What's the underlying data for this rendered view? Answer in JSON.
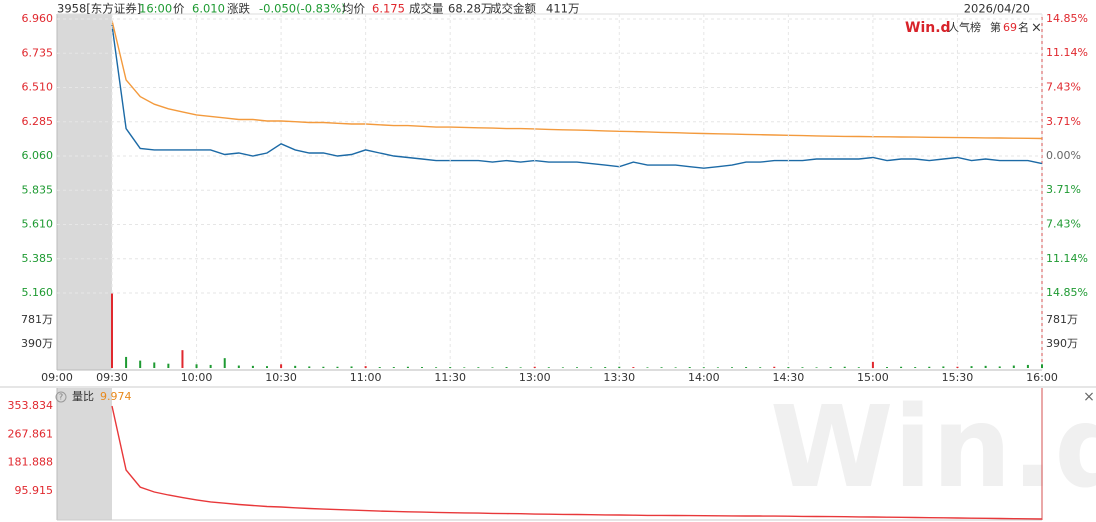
{
  "header": {
    "security": "3958[东方证券]",
    "time": "16:00",
    "price_label": "价",
    "price": "6.010",
    "change_label": "涨跌",
    "change": "-0.050(-0.83%)",
    "avg_label": "均价",
    "avg": "6.175",
    "volume_label": "成交量",
    "volume": "68.28万",
    "amount_label": "成交金额",
    "amount": "411万",
    "date": "2026/04/20"
  },
  "badge": {
    "logo": "Win.d",
    "rank_label": "人气榜",
    "rank_prefix": "第",
    "rank": 69,
    "rank_suffix": "名",
    "close": "×"
  },
  "watermark": "Win.d",
  "chart_data": [
    {
      "type": "line",
      "x": [
        0,
        1,
        2,
        3,
        4,
        5,
        6,
        7,
        8,
        9,
        10,
        11,
        12,
        13,
        14,
        15,
        16,
        17,
        18,
        19,
        20,
        21,
        22,
        23,
        24,
        25,
        26,
        27,
        28,
        29,
        30,
        31,
        32,
        33,
        34,
        35,
        36,
        37,
        38,
        39,
        40,
        41,
        42,
        43,
        44,
        45,
        46,
        47,
        48,
        49,
        50,
        51,
        52,
        53,
        54,
        55,
        56,
        57,
        58,
        59,
        60,
        61,
        62,
        63,
        64,
        65,
        66
      ],
      "xlim": [
        0,
        66
      ],
      "ylim": [
        5.16,
        6.96
      ],
      "yticks": [
        {
          "value": 6.96,
          "label": "6.960"
        },
        6.735,
        {
          "value": 6.51,
          "label": "6.510"
        },
        6.285,
        {
          "value": 6.06,
          "label": "6.060"
        },
        5.835,
        {
          "value": 5.61,
          "label": "5.610"
        },
        5.385,
        {
          "value": 5.16,
          "label": "5.160"
        }
      ],
      "y2lim": [
        -14.85,
        14.85
      ],
      "y2ticks": [
        {
          "value": 14.85,
          "label": "14.85%"
        },
        {
          "value": 11.14,
          "label": "11.14%"
        },
        {
          "value": 7.43,
          "label": "7.43%"
        },
        {
          "value": 3.71,
          "label": "3.71%"
        },
        {
          "value": 0,
          "label": "0.00%"
        },
        {
          "value": -3.71,
          "label": "3.71%"
        },
        {
          "value": -7.43,
          "label": "7.43%"
        },
        {
          "value": -11.14,
          "label": "11.14%"
        },
        {
          "value": -14.85,
          "label": "14.85%"
        }
      ],
      "grid": true,
      "series": [
        {
          "color": "#1c6aa6",
          "values": [
            6.92,
            6.24,
            6.11,
            6.1,
            6.1,
            6.1,
            6.1,
            6.1,
            6.07,
            6.08,
            6.06,
            6.08,
            6.14,
            6.1,
            6.08,
            6.08,
            6.06,
            6.07,
            6.1,
            6.08,
            6.06,
            6.05,
            6.04,
            6.03,
            6.03,
            6.03,
            6.03,
            6.02,
            6.03,
            6.02,
            6.03,
            6.02,
            6.02,
            6.02,
            6.01,
            6.0,
            5.99,
            6.02,
            6.0,
            6.0,
            6.0,
            5.99,
            5.98,
            5.99,
            6.0,
            6.02,
            6.02,
            6.03,
            6.03,
            6.03,
            6.04,
            6.04,
            6.04,
            6.04,
            6.05,
            6.03,
            6.04,
            6.04,
            6.03,
            6.04,
            6.05,
            6.03,
            6.04,
            6.03,
            6.03,
            6.03,
            6.01
          ]
        },
        {
          "color": "#f39a3d",
          "values": [
            6.95,
            6.56,
            6.45,
            6.4,
            6.37,
            6.35,
            6.33,
            6.32,
            6.31,
            6.3,
            6.3,
            6.29,
            6.29,
            6.285,
            6.28,
            6.28,
            6.275,
            6.27,
            6.27,
            6.265,
            6.26,
            6.26,
            6.255,
            6.25,
            6.25,
            6.248,
            6.245,
            6.243,
            6.24,
            6.24,
            6.238,
            6.235,
            6.232,
            6.23,
            6.228,
            6.225,
            6.222,
            6.22,
            6.218,
            6.215,
            6.213,
            6.21,
            6.208,
            6.206,
            6.204,
            6.202,
            6.2,
            6.198,
            6.196,
            6.194,
            6.192,
            6.19,
            6.189,
            6.188,
            6.187,
            6.186,
            6.185,
            6.184,
            6.183,
            6.182,
            6.181,
            6.18,
            6.179,
            6.178,
            6.177,
            6.176,
            6.175
          ]
        }
      ]
    },
    {
      "type": "bar",
      "x": [
        0,
        1,
        2,
        3,
        4,
        5,
        6,
        7,
        8,
        9,
        10,
        11,
        12,
        13,
        14,
        15,
        16,
        17,
        18,
        19,
        20,
        21,
        22,
        23,
        24,
        25,
        26,
        27,
        28,
        29,
        30,
        31,
        32,
        33,
        34,
        35,
        36,
        37,
        38,
        39,
        40,
        41,
        42,
        43,
        44,
        45,
        46,
        47,
        48,
        49,
        50,
        51,
        52,
        53,
        54,
        55,
        56,
        57,
        58,
        59,
        60,
        61,
        62,
        63,
        64,
        65,
        66
      ],
      "xlim": [
        0,
        66
      ],
      "xticks": [
        {
          "value": 0,
          "label": "09:30"
        },
        {
          "value": 6,
          "label": "10:00"
        },
        {
          "value": 12,
          "label": "10:30"
        },
        {
          "value": 18,
          "label": "11:00"
        },
        {
          "value": 24,
          "label": "11:30"
        },
        {
          "value": 30,
          "label": "13:00"
        },
        {
          "value": 36,
          "label": "13:30"
        },
        {
          "value": 42,
          "label": "14:00"
        },
        {
          "value": 48,
          "label": "14:30"
        },
        {
          "value": 54,
          "label": "15:00"
        },
        {
          "value": 60,
          "label": "15:30"
        },
        {
          "value": 66,
          "label": "16:00"
        }
      ],
      "premarket_label": "09:00",
      "xgrid": true,
      "ylim": [
        0,
        1219
      ],
      "yticks": [
        {
          "value": 781,
          "label": "781万"
        },
        {
          "value": 390,
          "label": "390万"
        }
      ],
      "values": [
        1210,
        180,
        120,
        90,
        70,
        290,
        60,
        50,
        160,
        40,
        35,
        30,
        60,
        35,
        25,
        20,
        20,
        25,
        30,
        15,
        15,
        20,
        15,
        12,
        15,
        10,
        12,
        10,
        15,
        10,
        20,
        12,
        10,
        12,
        10,
        15,
        20,
        15,
        10,
        12,
        10,
        15,
        12,
        10,
        12,
        15,
        12,
        20,
        15,
        12,
        10,
        15,
        20,
        12,
        100,
        15,
        20,
        15,
        20,
        25,
        20,
        30,
        35,
        25,
        40,
        50,
        60
      ],
      "colors": [
        "#e0282e",
        "#1e9a32",
        "#1e9a32",
        "#1e9a32",
        "#1e9a32",
        "#e0282e",
        "#1e9a32",
        "#1e9a32",
        "#1e9a32",
        "#1e9a32",
        "#1e9a32",
        "#1e9a32",
        "#e0282e",
        "#1e9a32",
        "#1e9a32",
        "#1e9a32",
        "#1e9a32",
        "#1e9a32",
        "#e0282e",
        "#1e9a32",
        "#1e9a32",
        "#1e9a32",
        "#1e9a32",
        "#1e9a32",
        "#1e9a32",
        "#1e9a32",
        "#1e9a32",
        "#1e9a32",
        "#1e9a32",
        "#1e9a32",
        "#e0282e",
        "#1e9a32",
        "#1e9a32",
        "#1e9a32",
        "#1e9a32",
        "#1e9a32",
        "#1e9a32",
        "#e0282e",
        "#1e9a32",
        "#1e9a32",
        "#1e9a32",
        "#1e9a32",
        "#1e9a32",
        "#1e9a32",
        "#1e9a32",
        "#1e9a32",
        "#1e9a32",
        "#e0282e",
        "#1e9a32",
        "#1e9a32",
        "#1e9a32",
        "#1e9a32",
        "#1e9a32",
        "#1e9a32",
        "#e0282e",
        "#1e9a32",
        "#1e9a32",
        "#1e9a32",
        "#1e9a32",
        "#1e9a32",
        "#e0282e",
        "#1e9a32",
        "#1e9a32",
        "#1e9a32",
        "#1e9a32",
        "#1e9a32",
        "#1e9a32"
      ]
    },
    {
      "type": "line",
      "help": "?",
      "title": "量比",
      "last": 9.974,
      "x": [
        0,
        1,
        2,
        3,
        4,
        5,
        6,
        7,
        8,
        9,
        10,
        11,
        12,
        13,
        14,
        15,
        16,
        17,
        18,
        19,
        20,
        21,
        22,
        23,
        24,
        25,
        26,
        27,
        28,
        29,
        30,
        31,
        32,
        33,
        34,
        35,
        36,
        37,
        38,
        39,
        40,
        41,
        42,
        43,
        44,
        45,
        46,
        47,
        48,
        49,
        50,
        51,
        52,
        53,
        54,
        55,
        56,
        57,
        58,
        59,
        60,
        61,
        62,
        63,
        64,
        65,
        66
      ],
      "xlim": [
        0,
        66
      ],
      "ylim": [
        9.942,
        353.834
      ],
      "yticks": [
        353.834,
        267.861,
        181.888,
        95.915
      ],
      "series": [
        {
          "color": "#e8383a",
          "values": [
            353.8,
            159,
            107,
            92,
            83,
            75,
            68,
            62,
            58,
            54,
            51,
            48,
            46.5,
            44,
            42,
            40,
            38.5,
            37,
            35.5,
            34,
            33,
            32,
            31,
            30,
            29,
            28.5,
            28,
            27,
            26.5,
            26,
            25,
            24.5,
            24,
            23.5,
            23,
            22.5,
            22,
            21.5,
            21,
            20.8,
            20.5,
            20.2,
            20,
            19.7,
            19.4,
            19.2,
            19,
            18.7,
            18.5,
            18,
            17.6,
            17.2,
            16.8,
            16.4,
            16,
            15.5,
            15,
            14.5,
            14,
            13.5,
            13,
            12.5,
            12,
            11.5,
            11,
            10.5,
            9.974
          ]
        }
      ]
    }
  ]
}
